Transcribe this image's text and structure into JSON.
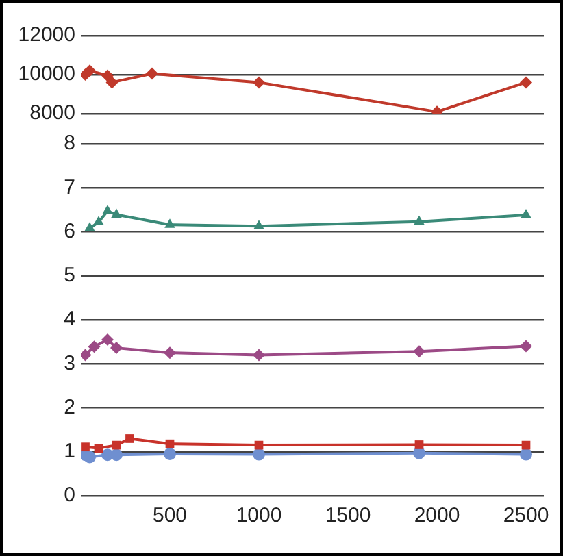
{
  "chart_data": [
    {
      "type": "line",
      "xlim": [
        0,
        2600
      ],
      "xticks": [
        500,
        1000,
        1500,
        2000,
        2500
      ],
      "ylim": [
        8000,
        12000
      ],
      "yticks": [
        8000,
        10000,
        12000
      ],
      "grid": "y",
      "tick_labels": "y",
      "series": [
        {
          "color": "#c0392b",
          "marker": "diamond",
          "x": [
            25,
            50,
            150,
            175,
            400,
            1000,
            2000,
            2500
          ],
          "values": [
            10000,
            10200,
            9950,
            9600,
            10050,
            9600,
            8100,
            9600
          ]
        }
      ]
    },
    {
      "type": "line",
      "xlim": [
        0,
        2600
      ],
      "xticks": [
        500,
        1000,
        1500,
        2000,
        2500
      ],
      "ylim": [
        0,
        8
      ],
      "yticks": [
        0,
        1,
        2,
        3,
        4,
        5,
        6,
        7,
        8
      ],
      "grid": "y",
      "series": [
        {
          "color": "#3a8a78",
          "marker": "triangle",
          "x": [
            50,
            100,
            150,
            200,
            500,
            1000,
            1900,
            2500
          ],
          "values": [
            6.08,
            6.22,
            6.47,
            6.39,
            6.16,
            6.13,
            6.23,
            6.38
          ]
        },
        {
          "color": "#9c4a86",
          "marker": "diamond",
          "x": [
            25,
            75,
            150,
            200,
            500,
            1000,
            1900,
            2500
          ],
          "values": [
            3.2,
            3.39,
            3.55,
            3.36,
            3.25,
            3.2,
            3.28,
            3.4
          ]
        },
        {
          "color": "#c8322a",
          "marker": "square",
          "x": [
            25,
            100,
            200,
            275,
            500,
            1000,
            1900,
            2500
          ],
          "values": [
            1.11,
            1.08,
            1.15,
            1.3,
            1.18,
            1.15,
            1.16,
            1.15
          ]
        },
        {
          "color": "#6f8fd0",
          "marker": "circle",
          "x": [
            25,
            50,
            150,
            200,
            500,
            1000,
            1900,
            2500
          ],
          "values": [
            0.93,
            0.88,
            0.93,
            0.93,
            0.95,
            0.94,
            0.97,
            0.94
          ]
        }
      ]
    }
  ]
}
